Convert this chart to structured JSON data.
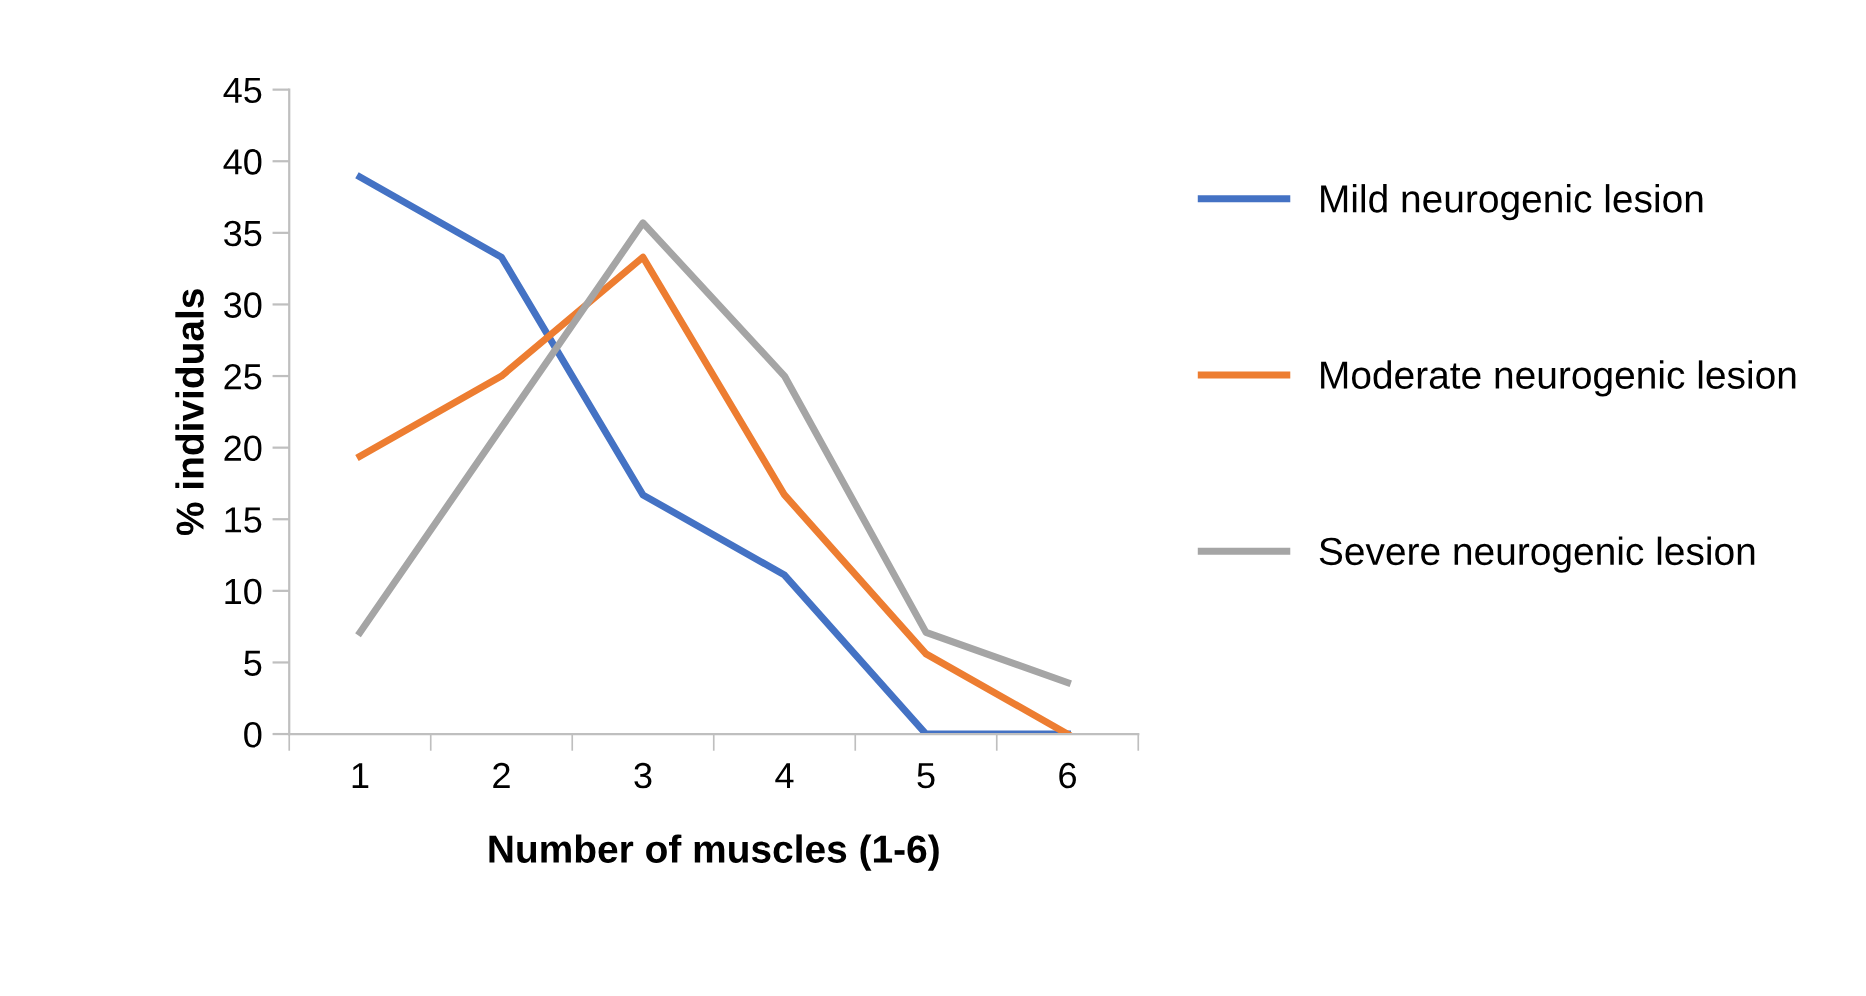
{
  "chart_data": {
    "type": "line",
    "xlabel": "Number of muscles (1-6)",
    "ylabel": "% individuals",
    "categories": [
      "1",
      "2",
      "3",
      "4",
      "5",
      "6"
    ],
    "series": [
      {
        "name": "Mild neurogenic lesion",
        "color": "#4472c4",
        "values": [
          38.9,
          33.3,
          16.7,
          11.1,
          0,
          0
        ]
      },
      {
        "name": "Moderate neurogenic lesion",
        "color": "#ed7d31",
        "values": [
          19.4,
          25,
          33.3,
          16.7,
          5.6,
          0
        ]
      },
      {
        "name": "Severe neurogenic lesion",
        "color": "#a5a5a5",
        "values": [
          7.1,
          21.4,
          35.7,
          25,
          7.1,
          3.6
        ]
      }
    ],
    "ylim": [
      0,
      45
    ],
    "yticks": [
      0,
      5,
      10,
      15,
      20,
      25,
      30,
      35,
      40,
      45
    ],
    "grid": false,
    "legend": "right",
    "marker": "none",
    "line_style": "solid"
  }
}
